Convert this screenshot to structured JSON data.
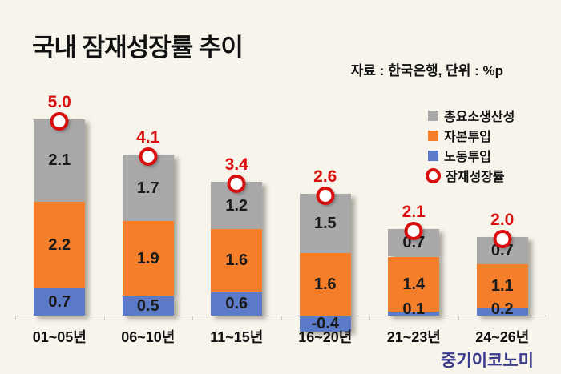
{
  "title": "국내 잠재성장률 추이",
  "source_note": "자료 : 한국은행, 단위 : %p",
  "watermark": "중기이코노미",
  "colors": {
    "background": "#F7F4EB",
    "tfp_gray": "#A8A8A8",
    "capital_orange": "#F57E2A",
    "labor_blue": "#5B7BC8",
    "marker_red": "#D90F0F",
    "axis_gray": "#C9C9C1",
    "watermark_blue": "#3B3B8C"
  },
  "legend": {
    "items": [
      {
        "label": "총요소생산성",
        "swatch": "square",
        "color_key": "tfp_gray"
      },
      {
        "label": "자본투입",
        "swatch": "square",
        "color_key": "capital_orange"
      },
      {
        "label": "노동투입",
        "swatch": "square",
        "color_key": "labor_blue"
      },
      {
        "label": "잠재성장률",
        "swatch": "ring",
        "color_key": "marker_red"
      }
    ]
  },
  "chart_data": {
    "type": "bar",
    "stacked": true,
    "grid": false,
    "legend_position": "right",
    "units": "%p",
    "categories": [
      "01~05년",
      "06~10년",
      "11~15년",
      "16~20년",
      "21~23년",
      "24~26년"
    ],
    "series": [
      {
        "name": "노동투입",
        "color_key": "labor_blue",
        "values": [
          0.7,
          0.5,
          0.6,
          -0.4,
          0.1,
          0.2
        ]
      },
      {
        "name": "자본투입",
        "color_key": "capital_orange",
        "values": [
          2.2,
          1.9,
          1.6,
          1.6,
          1.4,
          1.1
        ]
      },
      {
        "name": "총요소생산성",
        "color_key": "tfp_gray",
        "values": [
          2.1,
          1.7,
          1.2,
          1.5,
          0.7,
          0.7
        ]
      }
    ],
    "totals": {
      "name": "잠재성장률",
      "values": [
        5.0,
        4.1,
        3.4,
        2.6,
        2.1,
        2.0
      ]
    }
  }
}
